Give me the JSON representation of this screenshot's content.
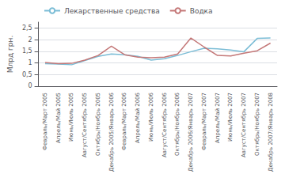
{
  "chart_data": {
    "type": "line",
    "categories": [
      "Февраль/Март 2005",
      "Апрель/Май 2005",
      "Июнь/Июль 2005",
      "Август/Сентябрь 2005",
      "Октябрь/Ноябрь 2005",
      "Декабрь 2005/Январь 2006",
      "Февраль/Март 2006",
      "Апрель/Май 2006",
      "Июнь/Июль 2006",
      "Август/Сентябрь 2006",
      "Октябрь/Ноябрь 2006",
      "Декабрь 2006/Январь 2007",
      "Февраль/Март 2007",
      "Апрель/Май 2007",
      "Июнь/Июль 2007",
      "Август/Сентябрь 2007",
      "Октябрь/Ноябрь 2007",
      "Декабрь 2007/Январь 2008"
    ],
    "series": [
      {
        "name": "Лекарственные средства",
        "color": "#7bbdd6",
        "values": [
          0.97,
          0.95,
          0.92,
          1.1,
          1.28,
          1.38,
          1.35,
          1.28,
          1.12,
          1.18,
          1.32,
          1.48,
          1.63,
          1.6,
          1.55,
          1.48,
          2.05,
          2.07
        ]
      },
      {
        "name": "Водка",
        "color": "#c47878",
        "values": [
          1.02,
          0.97,
          0.98,
          1.12,
          1.32,
          1.72,
          1.35,
          1.25,
          1.22,
          1.25,
          1.38,
          2.07,
          1.68,
          1.32,
          1.3,
          1.42,
          1.52,
          1.85
        ]
      }
    ],
    "ylabel": "Млрд грн.",
    "ylim": [
      0,
      2.75
    ],
    "yticks": [
      0,
      {
        "value": 0.5,
        "label": "0,5"
      },
      1,
      {
        "value": 1.5,
        "label": "1,5"
      },
      2,
      {
        "value": 2.5,
        "label": "2,5"
      }
    ],
    "grid": true,
    "legend": "upper left"
  }
}
